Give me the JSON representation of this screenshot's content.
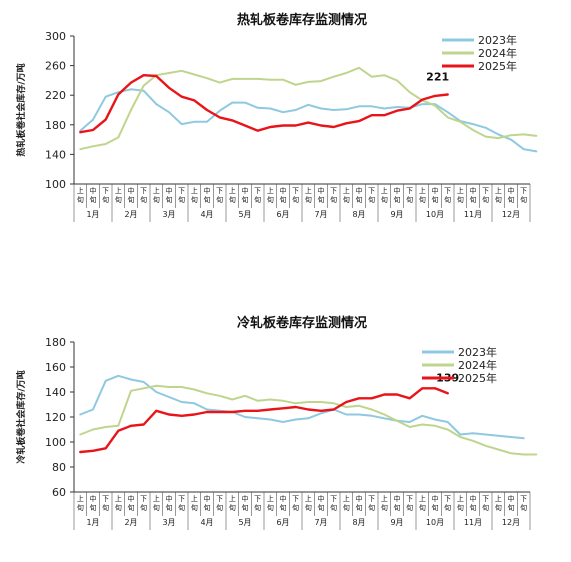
{
  "chart_data": [
    {
      "type": "line",
      "title": "热轧板卷库存监测情况",
      "ylabel": "热轧板卷社会库存/万吨",
      "ylim": [
        100,
        300
      ],
      "yticks": [
        100,
        140,
        180,
        220,
        260,
        300
      ],
      "period_labels": [
        "上旬",
        "中旬",
        "下旬"
      ],
      "months": [
        "1月",
        "2月",
        "3月",
        "4月",
        "5月",
        "6月",
        "7月",
        "8月",
        "9月",
        "10月",
        "11月",
        "12月"
      ],
      "legend_position": "top-right",
      "annotation": "221",
      "series": [
        {
          "name": "2023年",
          "color": "#8ec9df",
          "values": [
            172,
            187,
            218,
            224,
            228,
            226,
            208,
            197,
            181,
            184,
            184,
            199,
            210,
            210,
            203,
            202,
            197,
            200,
            207,
            202,
            200,
            201,
            205,
            205,
            202,
            204,
            203,
            208,
            208,
            197,
            185,
            181,
            176,
            167,
            160,
            147,
            144
          ]
        },
        {
          "name": "2024年",
          "color": "#bfd58e",
          "values": [
            147,
            151,
            154,
            163,
            200,
            233,
            247,
            250,
            253,
            248,
            243,
            237,
            242,
            242,
            242,
            241,
            241,
            234,
            238,
            239,
            245,
            250,
            257,
            245,
            247,
            240,
            224,
            213,
            206,
            190,
            184,
            173,
            164,
            162,
            166,
            167,
            165
          ]
        },
        {
          "name": "2025年",
          "color": "#e8141a",
          "values": [
            170,
            173,
            187,
            221,
            237,
            247,
            246,
            230,
            218,
            213,
            200,
            190,
            186,
            179,
            172,
            177,
            179,
            179,
            183,
            179,
            177,
            182,
            185,
            193,
            193,
            199,
            202,
            214,
            219,
            221
          ]
        }
      ]
    },
    {
      "type": "line",
      "title": "冷轧板卷库存监测情况",
      "ylabel": "冷轧板卷社会库存/万吨",
      "ylim": [
        60,
        180
      ],
      "yticks": [
        60,
        80,
        100,
        120,
        140,
        160,
        180
      ],
      "period_labels": [
        "上旬",
        "中旬",
        "下旬"
      ],
      "months": [
        "1月",
        "2月",
        "3月",
        "4月",
        "5月",
        "6月",
        "7月",
        "8月",
        "9月",
        "10月",
        "11月",
        "12月"
      ],
      "legend_position": "top-right",
      "annotation": "139",
      "series": [
        {
          "name": "2023年",
          "color": "#8ec9df",
          "values": [
            122,
            126,
            149,
            153,
            150,
            148,
            140,
            136,
            132,
            131,
            126,
            125,
            124,
            120,
            119,
            118,
            116,
            118,
            119,
            123,
            126,
            122,
            122,
            121,
            119,
            117,
            116,
            121,
            118,
            116,
            106,
            107,
            106,
            105,
            104,
            103
          ]
        },
        {
          "name": "2024年",
          "color": "#bfd58e",
          "values": [
            106,
            110,
            112,
            113,
            141,
            143,
            145,
            144,
            144,
            142,
            139,
            137,
            134,
            137,
            133,
            134,
            133,
            131,
            132,
            132,
            131,
            128,
            129,
            126,
            122,
            117,
            112,
            114,
            113,
            110,
            104,
            101,
            97,
            94,
            91,
            90,
            90
          ]
        },
        {
          "name": "2025年",
          "color": "#e8141a",
          "values": [
            92,
            93,
            95,
            109,
            113,
            114,
            125,
            122,
            121,
            122,
            124,
            124,
            124,
            125,
            125,
            126,
            127,
            128,
            126,
            125,
            126,
            132,
            135,
            135,
            138,
            138,
            135,
            143,
            143,
            139
          ]
        }
      ]
    }
  ]
}
